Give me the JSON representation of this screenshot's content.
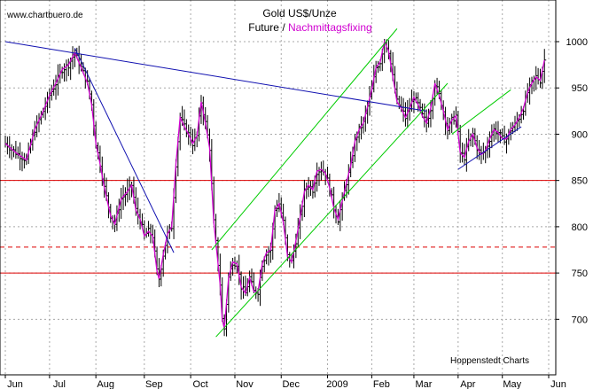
{
  "watermark": "www.chartbuero.de",
  "footer": "Hoppenstedt Charts",
  "colors": {
    "background": "#ffffff",
    "grid": "#a8a8a8",
    "bars": "#000000",
    "fixing": "#d000d0",
    "support": "#dd0000",
    "trend": "#1010b0",
    "channel": "#00cc00"
  },
  "chart_data": {
    "type": "line",
    "title": "Gold US$/Unze",
    "subtitle_prefix": "Future / ",
    "subtitle_highlight": "Nachmittagsfixing",
    "ylim": [
      640,
      1045
    ],
    "y_ticks": [
      700,
      750,
      800,
      850,
      900,
      950,
      1000
    ],
    "x_ticks": [
      "Jun",
      "Jul",
      "Aug",
      "Sep",
      "Oct",
      "Nov",
      "Dec",
      "2009",
      "Feb",
      "Mar",
      "Apr",
      "May",
      "Jun"
    ],
    "x_tick_index": [
      0,
      21,
      43,
      66,
      88,
      109,
      131,
      153,
      174,
      194,
      215,
      236,
      258
    ],
    "x_max_index": 258,
    "closes": [
      [
        0,
        890
      ],
      [
        5,
        880
      ],
      [
        10,
        872
      ],
      [
        14,
        905
      ],
      [
        18,
        925
      ],
      [
        21,
        942
      ],
      [
        24,
        955
      ],
      [
        27,
        970
      ],
      [
        30,
        975
      ],
      [
        33,
        988
      ],
      [
        36,
        972
      ],
      [
        39,
        955
      ],
      [
        41,
        932
      ],
      [
        43,
        890
      ],
      [
        45,
        868
      ],
      [
        47,
        842
      ],
      [
        50,
        812
      ],
      [
        52,
        803
      ],
      [
        55,
        830
      ],
      [
        58,
        838
      ],
      [
        60,
        845
      ],
      [
        62,
        818
      ],
      [
        64,
        808
      ],
      [
        66,
        790
      ],
      [
        68,
        795
      ],
      [
        70,
        790
      ],
      [
        72,
        752
      ],
      [
        73,
        744
      ],
      [
        75,
        770
      ],
      [
        77,
        792
      ],
      [
        79,
        800
      ],
      [
        81,
        868
      ],
      [
        83,
        918
      ],
      [
        85,
        908
      ],
      [
        87,
        900
      ],
      [
        89,
        890
      ],
      [
        91,
        898
      ],
      [
        93,
        935
      ],
      [
        95,
        912
      ],
      [
        97,
        885
      ],
      [
        99,
        805
      ],
      [
        101,
        760
      ],
      [
        102,
        738
      ],
      [
        103,
        700
      ],
      [
        104,
        690
      ],
      [
        106,
        745
      ],
      [
        108,
        762
      ],
      [
        110,
        760
      ],
      [
        112,
        735
      ],
      [
        114,
        728
      ],
      [
        116,
        745
      ],
      [
        118,
        730
      ],
      [
        120,
        730
      ],
      [
        122,
        760
      ],
      [
        124,
        772
      ],
      [
        126,
        775
      ],
      [
        128,
        818
      ],
      [
        130,
        825
      ],
      [
        132,
        805
      ],
      [
        134,
        768
      ],
      [
        136,
        762
      ],
      [
        138,
        785
      ],
      [
        140,
        810
      ],
      [
        142,
        838
      ],
      [
        144,
        845
      ],
      [
        146,
        840
      ],
      [
        148,
        860
      ],
      [
        150,
        862
      ],
      [
        152,
        858
      ],
      [
        154,
        842
      ],
      [
        156,
        820
      ],
      [
        158,
        808
      ],
      [
        160,
        828
      ],
      [
        162,
        848
      ],
      [
        164,
        866
      ],
      [
        166,
        892
      ],
      [
        168,
        905
      ],
      [
        170,
        912
      ],
      [
        172,
        930
      ],
      [
        174,
        948
      ],
      [
        176,
        972
      ],
      [
        178,
        978
      ],
      [
        180,
        1000
      ],
      [
        182,
        990
      ],
      [
        184,
        962
      ],
      [
        186,
        935
      ],
      [
        188,
        928
      ],
      [
        190,
        918
      ],
      [
        192,
        928
      ],
      [
        194,
        940
      ],
      [
        196,
        932
      ],
      [
        198,
        920
      ],
      [
        200,
        912
      ],
      [
        202,
        928
      ],
      [
        204,
        955
      ],
      [
        206,
        942
      ],
      [
        208,
        925
      ],
      [
        210,
        905
      ],
      [
        212,
        915
      ],
      [
        214,
        920
      ],
      [
        216,
        880
      ],
      [
        218,
        875
      ],
      [
        220,
        892
      ],
      [
        222,
        900
      ],
      [
        224,
        885
      ],
      [
        226,
        878
      ],
      [
        228,
        882
      ],
      [
        230,
        895
      ],
      [
        232,
        905
      ],
      [
        234,
        902
      ],
      [
        236,
        895
      ],
      [
        238,
        895
      ],
      [
        240,
        905
      ],
      [
        242,
        910
      ],
      [
        244,
        918
      ],
      [
        246,
        928
      ],
      [
        248,
        945
      ],
      [
        250,
        955
      ],
      [
        252,
        962
      ],
      [
        254,
        958
      ],
      [
        256,
        980
      ]
    ]
  }
}
